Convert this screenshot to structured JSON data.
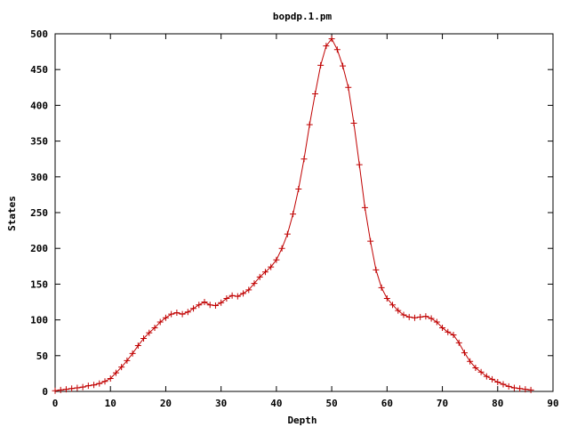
{
  "chart_data": {
    "type": "line",
    "title": "bopdp.1.pm",
    "xlabel": "Depth",
    "ylabel": "States",
    "xlim": [
      0,
      90
    ],
    "ylim": [
      0,
      500
    ],
    "x_ticks": [
      "0",
      "10",
      "20",
      "30",
      "40",
      "50",
      "60",
      "70",
      "80",
      "90"
    ],
    "y_ticks": [
      "0",
      "50",
      "100",
      "150",
      "200",
      "250",
      "300",
      "350",
      "400",
      "450",
      "500"
    ],
    "grid": false,
    "line_color": "#c00000",
    "marker": "plus",
    "series": [
      {
        "x": [
          0,
          1,
          2,
          3,
          4,
          5,
          6,
          7,
          8,
          9,
          10,
          11,
          12,
          13,
          14,
          15,
          16,
          17,
          18,
          19,
          20,
          21,
          22,
          23,
          24,
          25,
          26,
          27,
          28,
          29,
          30,
          31,
          32,
          33,
          34,
          35,
          36,
          37,
          38,
          39,
          40,
          41,
          42,
          43,
          44,
          45,
          46,
          47,
          48,
          49,
          50,
          51,
          52,
          53,
          54,
          55,
          56,
          57,
          58,
          59,
          60,
          61,
          62,
          63,
          64,
          65,
          66,
          67,
          68,
          69,
          70,
          71,
          72,
          73,
          74,
          75,
          76,
          77,
          78,
          79,
          80,
          81,
          82,
          83,
          84,
          85,
          86
        ],
        "y": [
          1,
          2,
          3,
          4,
          5,
          6,
          8,
          9,
          11,
          14,
          18,
          26,
          34,
          43,
          53,
          64,
          74,
          82,
          89,
          97,
          103,
          108,
          110,
          108,
          111,
          116,
          121,
          125,
          121,
          120,
          124,
          130,
          134,
          133,
          137,
          142,
          151,
          160,
          167,
          174,
          184,
          200,
          220,
          248,
          283,
          325,
          373,
          416,
          456,
          483,
          493,
          478,
          455,
          425,
          375,
          317,
          257,
          210,
          170,
          145,
          130,
          121,
          113,
          107,
          104,
          103,
          104,
          105,
          102,
          97,
          89,
          83,
          79,
          68,
          54,
          42,
          33,
          27,
          21,
          17,
          13,
          10,
          7,
          5,
          4,
          3,
          2
        ]
      }
    ]
  }
}
